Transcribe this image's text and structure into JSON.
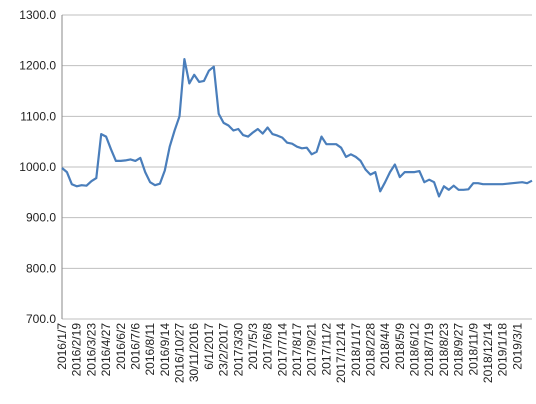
{
  "chart_data": {
    "type": "line",
    "categories": [
      "2016/1/7",
      null,
      null,
      "2016/2/19",
      null,
      null,
      "2016/3/23",
      null,
      null,
      "2016/4/27",
      null,
      null,
      "2016/6/2",
      null,
      null,
      "2016/7/6",
      null,
      null,
      "2016/8/11",
      null,
      null,
      "2016/9/14",
      null,
      null,
      "2016/10/27",
      null,
      null,
      "30/11/2016",
      null,
      null,
      "6/1/2017",
      null,
      null,
      "23/2/2017",
      null,
      null,
      "2017/3/30",
      null,
      null,
      "2017/5/3",
      null,
      null,
      "2017/6/8",
      null,
      null,
      "2017/7/14",
      null,
      null,
      "2017/8/17",
      null,
      null,
      "2017/9/21",
      null,
      null,
      "2017/11/2",
      null,
      null,
      "2017/12/14",
      null,
      null,
      "2018/1/17",
      null,
      null,
      "2018/2/28",
      null,
      null,
      "2018/4/4",
      null,
      null,
      "2018/5/9",
      null,
      null,
      "2018/6/12",
      null,
      null,
      "2018/7/19",
      null,
      null,
      "2018/8/23",
      null,
      null,
      "2018/9/27",
      null,
      null,
      "2018/11/9",
      null,
      null,
      "2018/12/14",
      null,
      null,
      "2019/1/18",
      null,
      null,
      "2019/3/1",
      null,
      null,
      null
    ],
    "values": [
      998,
      990,
      966,
      962,
      964,
      963,
      972,
      978,
      1065,
      1060,
      1035,
      1012,
      1012,
      1013,
      1015,
      1012,
      1018,
      990,
      970,
      964,
      967,
      993,
      1040,
      1072,
      1100,
      1213,
      1165,
      1182,
      1168,
      1170,
      1190,
      1198,
      1105,
      1087,
      1082,
      1072,
      1075,
      1063,
      1060,
      1068,
      1075,
      1066,
      1078,
      1065,
      1062,
      1058,
      1048,
      1046,
      1040,
      1037,
      1038,
      1025,
      1030,
      1060,
      1045,
      1045,
      1045,
      1038,
      1020,
      1025,
      1020,
      1012,
      995,
      985,
      990,
      952,
      970,
      990,
      1005,
      980,
      990,
      990,
      990,
      992,
      970,
      975,
      970,
      942,
      962,
      955,
      963,
      955,
      955,
      956,
      968,
      968,
      966,
      966,
      966,
      966,
      966,
      967,
      968,
      969,
      970,
      968,
      973
    ],
    "color": "#4a7ebb",
    "ylim": [
      700,
      1300
    ],
    "yticks": [
      {
        "value": 700,
        "label": "700.0"
      },
      {
        "value": 800,
        "label": "800.0"
      },
      {
        "value": 900,
        "label": "900.0"
      },
      {
        "value": 1000,
        "label": "1000.0"
      },
      {
        "value": 1100,
        "label": "1100.0"
      },
      {
        "value": 1200,
        "label": "1200.0"
      },
      {
        "value": 1300,
        "label": "1300.0"
      }
    ],
    "grid": true
  }
}
